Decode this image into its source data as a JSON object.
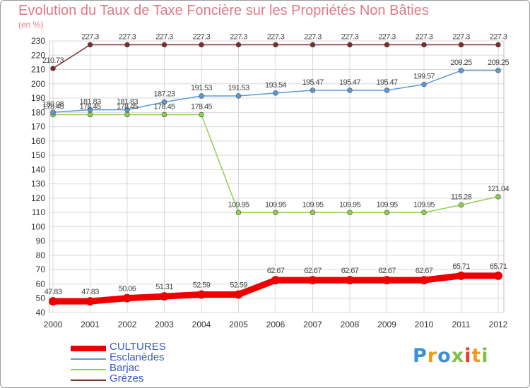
{
  "title": "Evolution du Taux de Taxe Foncière sur les Propriétés Non Bâties",
  "unit_label": "(en %)",
  "logo_text": "Proxiti",
  "colors": {
    "title": "#e07a86",
    "legend_text": "#3b57c7",
    "grid": "#d8d8d8",
    "axis_text": "#333333"
  },
  "chart_data": {
    "type": "line",
    "title": "Evolution du Taux de Taxe Foncière sur les Propriétés Non Bâties",
    "xlabel": "",
    "ylabel": "(en %)",
    "ylim": [
      40,
      230
    ],
    "ytick_step": 10,
    "grid": true,
    "legend_position": "bottom-left",
    "x": [
      "2000",
      "2001",
      "2002",
      "2003",
      "2004",
      "2005",
      "2006",
      "2007",
      "2008",
      "2009",
      "2010",
      "2011",
      "2012"
    ],
    "series": [
      {
        "name": "CULTURES",
        "color": "#ee0000",
        "style": "thick",
        "values": [
          47.83,
          47.83,
          50.06,
          51.31,
          52.59,
          52.59,
          62.67,
          62.67,
          62.67,
          62.67,
          62.67,
          65.71,
          65.71
        ],
        "labels": [
          "47.83",
          "47.83",
          "50.06",
          "51.31",
          "52.59",
          "52.59",
          "62.67",
          "62.67",
          "62.67",
          "62.67",
          "62.67",
          "65.71",
          "65.71"
        ]
      },
      {
        "name": "Esclanèdes",
        "color": "#5b9bd5",
        "style": "thin",
        "values": [
          180.08,
          181.83,
          181.83,
          187.23,
          191.53,
          191.53,
          193.54,
          195.47,
          195.47,
          195.47,
          199.57,
          209.25,
          209.25
        ],
        "labels": [
          "180.08",
          "181.83",
          "181.83",
          "187.23",
          "191.53",
          "191.53",
          "193.54",
          "195.47",
          "195.47",
          "195.47",
          "199.57",
          "209.25",
          "209.25"
        ]
      },
      {
        "name": "Barjac",
        "color": "#8fd14f",
        "style": "thin",
        "values": [
          178.45,
          178.45,
          178.45,
          178.45,
          178.45,
          109.95,
          109.95,
          109.95,
          109.95,
          109.95,
          109.95,
          115.28,
          121.04
        ],
        "labels": [
          "178.45",
          "178.45",
          "178.45",
          "178.45",
          "178.45",
          "109.95",
          "109.95",
          "109.95",
          "109.95",
          "109.95",
          "109.95",
          "115.28",
          "121.04"
        ]
      },
      {
        "name": "Grèzes",
        "color": "#7b2c2c",
        "style": "thin",
        "values": [
          210.73,
          227.3,
          227.3,
          227.3,
          227.3,
          227.3,
          227.3,
          227.3,
          227.3,
          227.3,
          227.3,
          227.3,
          227.3
        ],
        "labels": [
          "210.73",
          "227.3",
          "227.3",
          "227.3",
          "227.3",
          "227.3",
          "227.3",
          "227.3",
          "227.3",
          "227.3",
          "227.3",
          "227.3",
          "227.3"
        ]
      }
    ]
  }
}
